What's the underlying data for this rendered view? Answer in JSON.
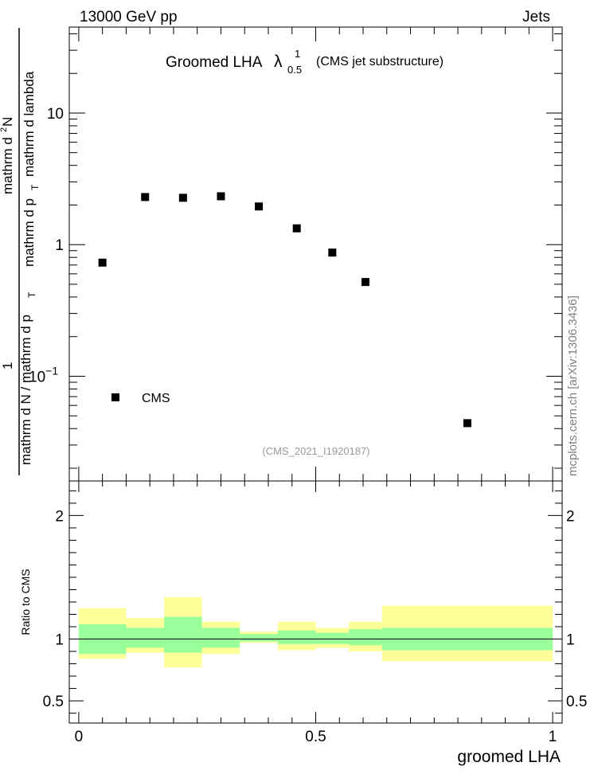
{
  "header": {
    "left": "13000 GeV pp",
    "right": "Jets"
  },
  "title": {
    "main": "Groomed LHA",
    "symbol": "λ",
    "sup": "1",
    "sub": "0.5",
    "suffix": "(CMS jet substructure)"
  },
  "side_label": "mcplots.cern.ch [arXiv:1306.3436]",
  "analysis_id": "(CMS_2021_I1920187)",
  "legend": {
    "label": "CMS"
  },
  "colors": {
    "band_outer": "#ffff99",
    "band_inner": "#99ff99",
    "marker": "#000000",
    "frame": "#000000",
    "analysis_text": "#999999",
    "side_text": "#808080"
  },
  "chart_data": [
    {
      "type": "scatter",
      "panel": "main",
      "series": [
        {
          "name": "CMS",
          "x": [
            0.05,
            0.14,
            0.22,
            0.3,
            0.38,
            0.46,
            0.535,
            0.605,
            0.82
          ],
          "y": [
            0.73,
            2.3,
            2.27,
            2.33,
            1.95,
            1.33,
            0.87,
            0.52,
            0.044
          ]
        }
      ],
      "ylabel": "1/mathrm d N / mathrm d p_T mathrm d^2N/mathrm d p_T mathrm d lambda",
      "ylabel_parts": {
        "num1": "1",
        "den1": "mathrm d N / mathrm d p",
        "den1_sub": "T",
        "num2": "mathrm d",
        "num2_sup": "2",
        "num2_rest": "N",
        "den2a": "mathrm d p",
        "den2a_sub": "T",
        "den2b": "mathrm d lambda"
      },
      "yscale": "log",
      "ylim": [
        0.016,
        45
      ],
      "xlim": [
        -0.02,
        1.02
      ],
      "yticks": [
        {
          "value": 10,
          "label": "10"
        },
        {
          "value": 1,
          "label": "1"
        },
        {
          "value": 0.1,
          "label_base": "10",
          "label_exp": "−1"
        }
      ],
      "legend_position": "lower-left"
    },
    {
      "type": "area",
      "panel": "ratio",
      "ylabel": "Ratio to CMS",
      "xlabel": "groomed LHA",
      "xlim": [
        -0.02,
        1.02
      ],
      "ylim": [
        0.32,
        2.28
      ],
      "xticks": [
        {
          "value": 0,
          "label": "0"
        },
        {
          "value": 0.5,
          "label": "0.5"
        },
        {
          "value": 1,
          "label": "1"
        }
      ],
      "yticks": [
        {
          "value": 2,
          "label": "2"
        },
        {
          "value": 1,
          "label": "1"
        },
        {
          "value": 0.5,
          "label": "0.5"
        }
      ],
      "reference_line": 1.0,
      "bins": [
        {
          "lo": 0.0,
          "hi": 0.1,
          "inner": [
            0.88,
            1.12
          ],
          "outer": [
            0.84,
            1.25
          ]
        },
        {
          "lo": 0.1,
          "hi": 0.18,
          "inner": [
            0.93,
            1.09
          ],
          "outer": [
            0.89,
            1.17
          ]
        },
        {
          "lo": 0.18,
          "hi": 0.26,
          "inner": [
            0.89,
            1.18
          ],
          "outer": [
            0.77,
            1.34
          ]
        },
        {
          "lo": 0.26,
          "hi": 0.34,
          "inner": [
            0.93,
            1.09
          ],
          "outer": [
            0.88,
            1.14
          ]
        },
        {
          "lo": 0.34,
          "hi": 0.42,
          "inner": [
            0.98,
            1.04
          ],
          "outer": [
            0.97,
            1.06
          ]
        },
        {
          "lo": 0.42,
          "hi": 0.5,
          "inner": [
            0.96,
            1.07
          ],
          "outer": [
            0.91,
            1.14
          ]
        },
        {
          "lo": 0.5,
          "hi": 0.57,
          "inner": [
            0.96,
            1.05
          ],
          "outer": [
            0.93,
            1.09
          ]
        },
        {
          "lo": 0.57,
          "hi": 0.64,
          "inner": [
            0.95,
            1.08
          ],
          "outer": [
            0.9,
            1.14
          ]
        },
        {
          "lo": 0.64,
          "hi": 1.0,
          "inner": [
            0.91,
            1.09
          ],
          "outer": [
            0.82,
            1.27
          ]
        }
      ]
    }
  ]
}
